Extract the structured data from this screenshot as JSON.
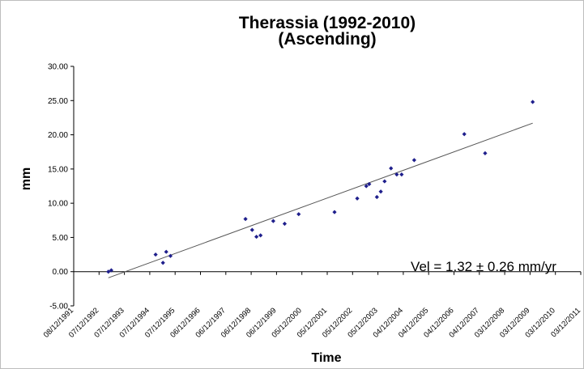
{
  "chart_data": {
    "type": "scatter",
    "title": "Therassia (1992-2010)",
    "subtitle": "(Ascending)",
    "xlabel": "Time",
    "ylabel": "mm",
    "ylim": [
      -5,
      30
    ],
    "xlim": [
      "08/12/1991",
      "03/12/2011"
    ],
    "y_ticks": [
      "-5.00",
      "0.00",
      "5.00",
      "10.00",
      "15.00",
      "20.00",
      "25.00",
      "30.00"
    ],
    "x_ticks": [
      "08/12/1991",
      "07/12/1992",
      "07/12/1993",
      "07/12/1994",
      "07/12/1995",
      "06/12/1996",
      "06/12/1997",
      "06/12/1998",
      "06/12/1999",
      "05/12/2000",
      "05/12/2001",
      "05/12/2002",
      "05/12/2003",
      "04/12/2004",
      "04/12/2005",
      "04/12/2006",
      "04/12/2007",
      "03/12/2008",
      "03/12/2009",
      "03/12/2010",
      "03/12/2011"
    ],
    "grid": false,
    "legend": "none",
    "marker_color": "#1f1f8c",
    "trend_color": "#555555",
    "annotation": "Vel = 1.32 ± 0.26 mm/yr",
    "points": [
      {
        "x": "1993-04-20",
        "y": 0.0
      },
      {
        "x": "1993-06-01",
        "y": 0.2
      },
      {
        "x": "1995-03-01",
        "y": 2.5
      },
      {
        "x": "1995-06-15",
        "y": 1.3
      },
      {
        "x": "1995-08-01",
        "y": 2.9
      },
      {
        "x": "1995-10-01",
        "y": 2.3
      },
      {
        "x": "1998-09-15",
        "y": 7.7
      },
      {
        "x": "1998-12-20",
        "y": 6.1
      },
      {
        "x": "1999-02-20",
        "y": 5.1
      },
      {
        "x": "1999-04-20",
        "y": 5.3
      },
      {
        "x": "1999-10-20",
        "y": 7.4
      },
      {
        "x": "2000-04-01",
        "y": 7.0
      },
      {
        "x": "2000-10-20",
        "y": 8.4
      },
      {
        "x": "2002-03-20",
        "y": 8.7
      },
      {
        "x": "2003-02-10",
        "y": 10.7
      },
      {
        "x": "2003-06-20",
        "y": 12.5
      },
      {
        "x": "2003-08-01",
        "y": 12.8
      },
      {
        "x": "2003-11-20",
        "y": 10.9
      },
      {
        "x": "2004-01-15",
        "y": 11.7
      },
      {
        "x": "2004-03-10",
        "y": 13.2
      },
      {
        "x": "2004-06-10",
        "y": 15.1
      },
      {
        "x": "2004-09-01",
        "y": 14.2
      },
      {
        "x": "2004-11-10",
        "y": 14.2
      },
      {
        "x": "2005-05-10",
        "y": 16.3
      },
      {
        "x": "2007-05-01",
        "y": 20.1
      },
      {
        "x": "2008-02-25",
        "y": 17.3
      },
      {
        "x": "2010-01-10",
        "y": 24.8
      }
    ],
    "trendline": [
      {
        "x": "1993-04-20",
        "y": -0.9
      },
      {
        "x": "2010-01-10",
        "y": 21.7
      }
    ]
  }
}
